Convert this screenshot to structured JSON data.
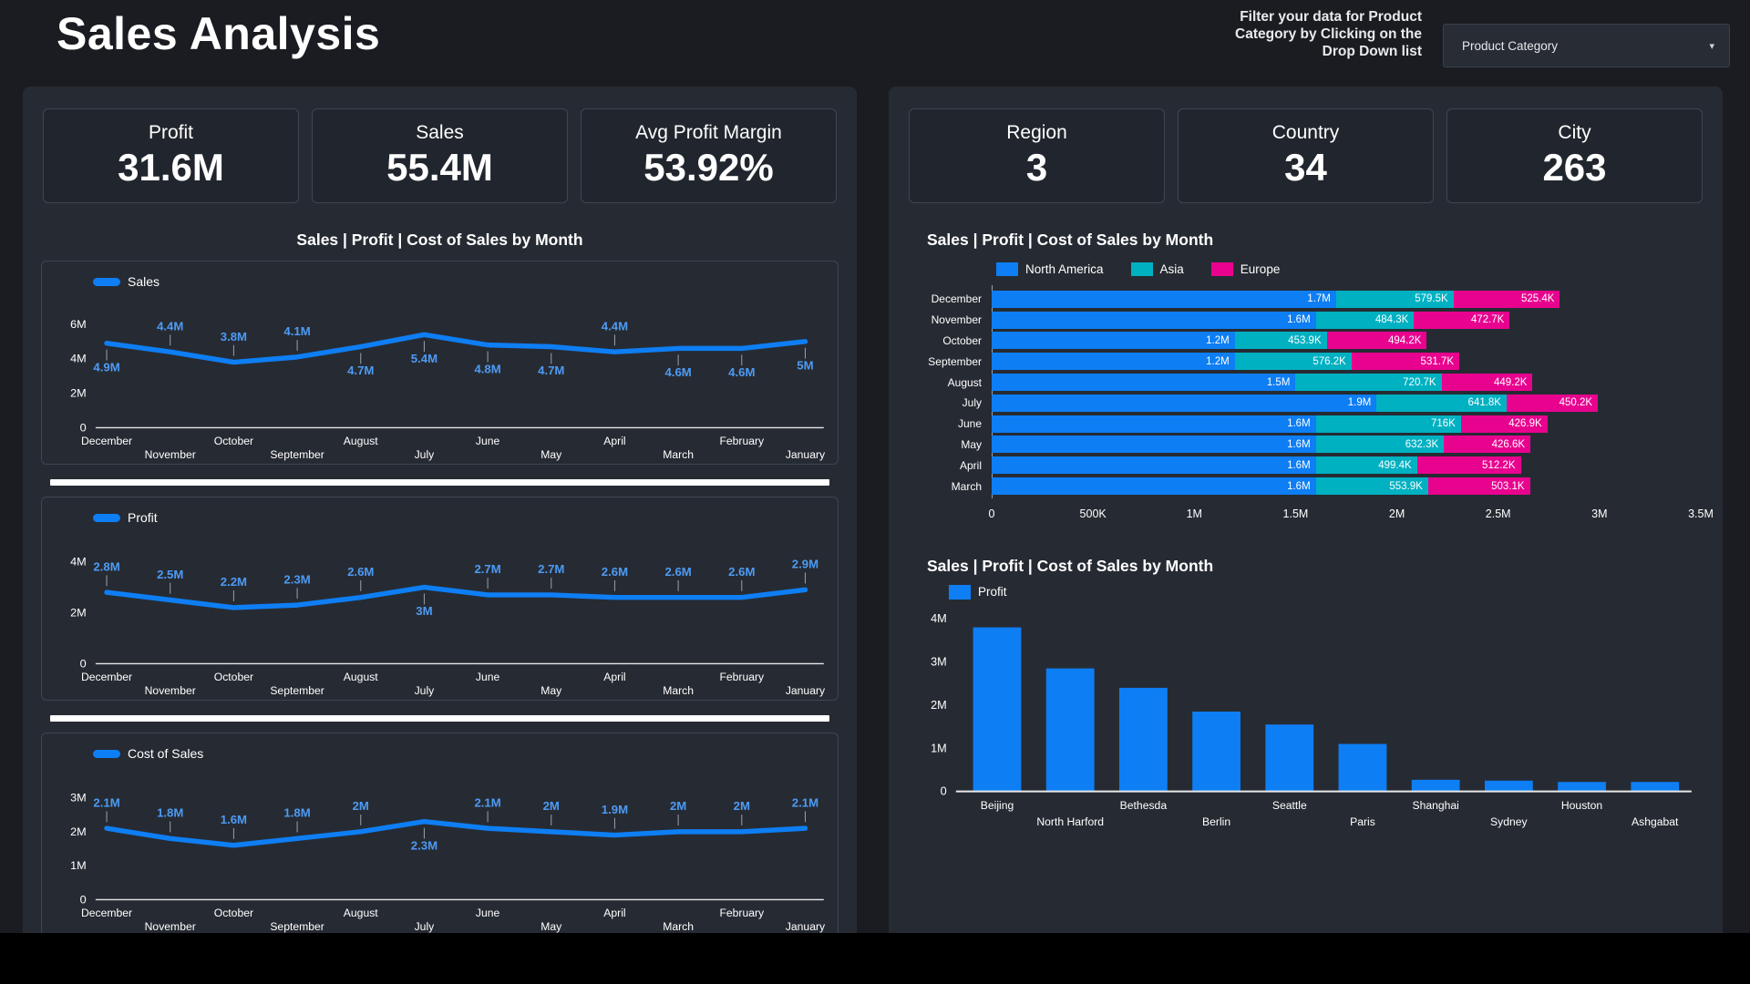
{
  "header": {
    "title": "Sales Analysis",
    "filter_hint_lines": [
      "Filter your data for Product",
      "Category by Clicking on the",
      "Drop Down list"
    ],
    "dropdown_label": "Product Category",
    "dropdown_caret": "▾"
  },
  "colors": {
    "accent_blue": "#0e7ef4",
    "teal": "#00b1c2",
    "magenta": "#e8038f",
    "label_blue": "#4d9bf5",
    "axis_text": "#ffffff",
    "leader_line": "#9aa0a8",
    "axis_line": "#e8e8e8"
  },
  "left_panel": {
    "kpis": [
      {
        "label": "Profit",
        "value": "31.6M"
      },
      {
        "label": "Sales",
        "value": "55.4M"
      },
      {
        "label": "Avg Profit Margin",
        "value": "53.92%"
      }
    ],
    "section_title": "Sales | Profit | Cost of Sales by Month"
  },
  "right_panel": {
    "kpis": [
      {
        "label": "Region",
        "value": "3"
      },
      {
        "label": "Country",
        "value": "34"
      },
      {
        "label": "City",
        "value": "263"
      }
    ],
    "stacked_title": "Sales | Profit | Cost of Sales by Month",
    "bar_title": "Sales | Profit | Cost of Sales by Month"
  },
  "chart_data": [
    {
      "id": "sales-line",
      "type": "line",
      "legend": "Sales",
      "title": "Sales by Month",
      "categories": [
        "December",
        "November",
        "October",
        "September",
        "August",
        "July",
        "June",
        "May",
        "April",
        "March",
        "February",
        "January"
      ],
      "values": [
        4.9,
        4.4,
        3.8,
        4.1,
        4.7,
        5.4,
        4.8,
        4.7,
        4.4,
        4.6,
        4.6,
        5.0
      ],
      "labels": [
        "4.9M",
        "4.4M",
        "3.8M",
        "4.1M",
        "4.7M",
        "5.4M",
        "4.8M",
        "4.7M",
        "4.4M",
        "4.6M",
        "4.6M",
        "5M"
      ],
      "label_pos": [
        "below",
        "above",
        "above",
        "above",
        "below",
        "below",
        "below",
        "below",
        "above",
        "below",
        "below",
        "below"
      ],
      "unit": "M",
      "ymax": 6.8,
      "yticks": [
        {
          "v": 0,
          "label": "0"
        },
        {
          "v": 2,
          "label": "2M"
        },
        {
          "v": 4,
          "label": "4M"
        },
        {
          "v": 6,
          "label": "6M"
        }
      ]
    },
    {
      "id": "profit-line",
      "type": "line",
      "legend": "Profit",
      "title": "Profit by Month",
      "categories": [
        "December",
        "November",
        "October",
        "September",
        "August",
        "July",
        "June",
        "May",
        "April",
        "March",
        "February",
        "January"
      ],
      "values": [
        2.8,
        2.5,
        2.2,
        2.3,
        2.6,
        3.0,
        2.7,
        2.7,
        2.6,
        2.6,
        2.6,
        2.9
      ],
      "labels": [
        "2.8M",
        "2.5M",
        "2.2M",
        "2.3M",
        "2.6M",
        "3M",
        "2.7M",
        "2.7M",
        "2.6M",
        "2.6M",
        "2.6M",
        "2.9M"
      ],
      "label_pos": [
        "above",
        "above",
        "above",
        "above",
        "above",
        "below",
        "above",
        "above",
        "above",
        "above",
        "above",
        "above"
      ],
      "unit": "M",
      "ymax": 4.6,
      "yticks": [
        {
          "v": 0,
          "label": "0"
        },
        {
          "v": 2,
          "label": "2M"
        },
        {
          "v": 4,
          "label": "4M"
        }
      ]
    },
    {
      "id": "cost-line",
      "type": "line",
      "legend": "Cost of Sales",
      "title": "Cost of Sales by Month",
      "categories": [
        "December",
        "November",
        "October",
        "September",
        "August",
        "July",
        "June",
        "May",
        "April",
        "March",
        "February",
        "January"
      ],
      "values": [
        2.1,
        1.8,
        1.6,
        1.8,
        2.0,
        2.3,
        2.1,
        2.0,
        1.9,
        2.0,
        2.0,
        2.1
      ],
      "labels": [
        "2.1M",
        "1.8M",
        "1.6M",
        "1.8M",
        "2M",
        "2.3M",
        "2.1M",
        "2M",
        "1.9M",
        "2M",
        "2M",
        "2.1M"
      ],
      "label_pos": [
        "above",
        "above",
        "above",
        "above",
        "above",
        "below",
        "above",
        "above",
        "above",
        "above",
        "above",
        "above"
      ],
      "unit": "M",
      "ymax": 3.45,
      "yticks": [
        {
          "v": 0,
          "label": "0"
        },
        {
          "v": 1,
          "label": "1M"
        },
        {
          "v": 2,
          "label": "2M"
        },
        {
          "v": 3,
          "label": "3M"
        }
      ]
    },
    {
      "id": "region-stacked",
      "type": "stacked-bar-h",
      "title": "Sales by Month and Region",
      "categories": [
        "December",
        "November",
        "October",
        "September",
        "August",
        "July",
        "June",
        "May",
        "April",
        "March"
      ],
      "xmax": 3.5,
      "xticks": [
        "0",
        "500K",
        "1M",
        "1.5M",
        "2M",
        "2.5M",
        "3M",
        "3.5M"
      ],
      "series": [
        {
          "name": "North America",
          "color": "#0e7ef4",
          "values": [
            1.7,
            1.6,
            1.2,
            1.2,
            1.5,
            1.9,
            1.6,
            1.6,
            1.6,
            1.6
          ],
          "labels": [
            "1.7M",
            "1.6M",
            "1.2M",
            "1.2M",
            "1.5M",
            "1.9M",
            "1.6M",
            "1.6M",
            "1.6M",
            "1.6M"
          ]
        },
        {
          "name": "Asia",
          "color": "#00b1c2",
          "values": [
            0.5795,
            0.4843,
            0.4539,
            0.5762,
            0.7207,
            0.6418,
            0.716,
            0.6323,
            0.4994,
            0.5539
          ],
          "labels": [
            "579.5K",
            "484.3K",
            "453.9K",
            "576.2K",
            "720.7K",
            "641.8K",
            "716K",
            "632.3K",
            "499.4K",
            "553.9K"
          ]
        },
        {
          "name": "Europe",
          "color": "#e8038f",
          "values": [
            0.5254,
            0.4727,
            0.4942,
            0.5317,
            0.4492,
            0.4502,
            0.4269,
            0.4266,
            0.5122,
            0.5031
          ],
          "labels": [
            "525.4K",
            "472.7K",
            "494.2K",
            "531.7K",
            "449.2K",
            "450.2K",
            "426.9K",
            "426.6K",
            "512.2K",
            "503.1K"
          ]
        }
      ]
    },
    {
      "id": "city-bar",
      "type": "bar",
      "legend": "Profit",
      "title": "Profit by City",
      "categories": [
        "Beijing",
        "North Harford",
        "Bethesda",
        "Berlin",
        "Seattle",
        "Paris",
        "Shanghai",
        "Sydney",
        "Houston",
        "Ashgabat"
      ],
      "values": [
        3.8,
        2.85,
        2.4,
        1.85,
        1.55,
        1.1,
        0.27,
        0.25,
        0.22,
        0.22
      ],
      "unit": "M",
      "ymax": 4.0,
      "yticks": [
        {
          "v": 0,
          "label": "0"
        },
        {
          "v": 1,
          "label": "1M"
        },
        {
          "v": 2,
          "label": "2M"
        },
        {
          "v": 3,
          "label": "3M"
        },
        {
          "v": 4,
          "label": "4M"
        }
      ]
    }
  ]
}
